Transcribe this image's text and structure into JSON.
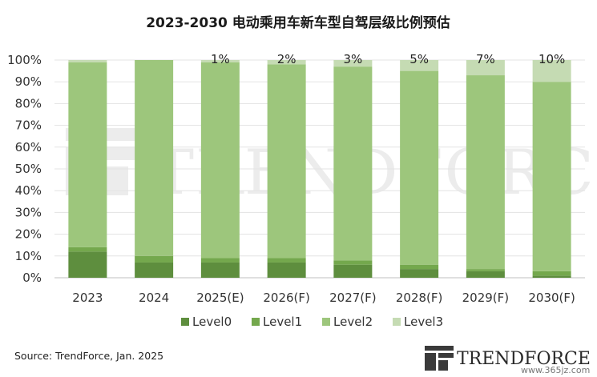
{
  "colors": {
    "Level0": "#5e8e3e",
    "Level1": "#74a84d",
    "Level2": "#9dc67c",
    "Level3": "#c5dbb3"
  },
  "chart_data": {
    "type": "bar",
    "stacked": true,
    "title": "2023-2030 电动乘用车新车型自驾层级比例预估",
    "categories": [
      "2023",
      "2024",
      "2025(E)",
      "2026(F)",
      "2027(F)",
      "2028(F)",
      "2029(F)",
      "2030(F)"
    ],
    "series": [
      {
        "name": "Level0",
        "values": [
          12,
          7,
          7,
          7,
          6,
          4,
          3,
          1
        ]
      },
      {
        "name": "Level1",
        "values": [
          2,
          3,
          2,
          2,
          2,
          2,
          1,
          2
        ]
      },
      {
        "name": "Level2",
        "values": [
          85,
          90,
          90,
          89,
          89,
          89,
          89,
          87
        ]
      },
      {
        "name": "Level3",
        "values": [
          1,
          0,
          1,
          2,
          3,
          5,
          7,
          10
        ]
      }
    ],
    "data_labels": [
      "",
      "",
      "1%",
      "2%",
      "3%",
      "5%",
      "7%",
      "10%"
    ],
    "y_ticks": [
      "0%",
      "10%",
      "20%",
      "30%",
      "40%",
      "50%",
      "60%",
      "70%",
      "80%",
      "90%",
      "100%"
    ],
    "ylim": [
      0,
      100
    ],
    "grid": true,
    "legend_position": "bottom",
    "source": "Source: TrendForce, Jan. 2025"
  },
  "watermark": {
    "text": "TRENDFORCE"
  },
  "logo": {
    "text": "TRENDFORCE"
  },
  "site": {
    "text": "www.365jz.com"
  }
}
